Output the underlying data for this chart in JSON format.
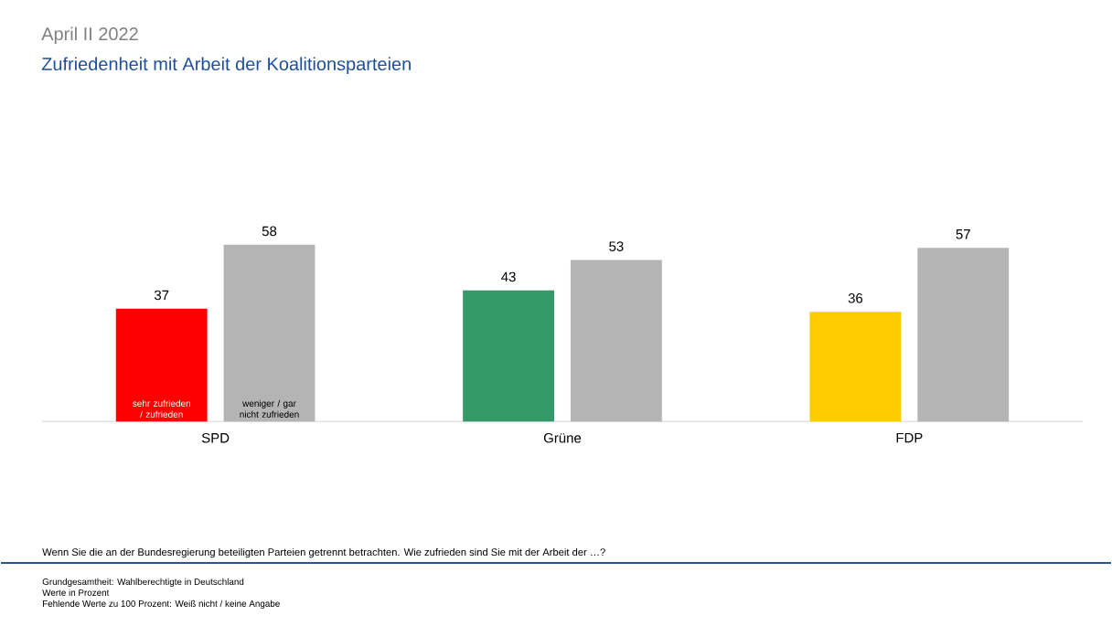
{
  "chart_data": {
    "type": "bar",
    "title": "April II 2022",
    "subtitle": "Zufriedenheit mit Arbeit der Koalitionsparteien",
    "categories": [
      "SPD",
      "Grüne",
      "FDP"
    ],
    "series": [
      {
        "name": "sehr zufrieden / zufrieden",
        "colors": [
          "#ff0000",
          "#339966",
          "#ffcc00"
        ],
        "values": [
          37,
          43,
          36
        ]
      },
      {
        "name": "weniger / gar nicht zufrieden",
        "color": "#b4b4b4",
        "values": [
          58,
          53,
          57
        ]
      }
    ],
    "data_labels": true,
    "annotations": [
      "Wenn Sie die an der Bundesregierung beteiligten Parteien getrennt betrachten. Wie zufrieden sind Sie mit der Arbeit der …?",
      "Grundgesamtheit: Wahlberechtigte in Deutschland",
      "Werte in Prozent",
      "Fehlende Werte zu 100 Prozent: Weiß nicht / keine Angabe"
    ]
  }
}
